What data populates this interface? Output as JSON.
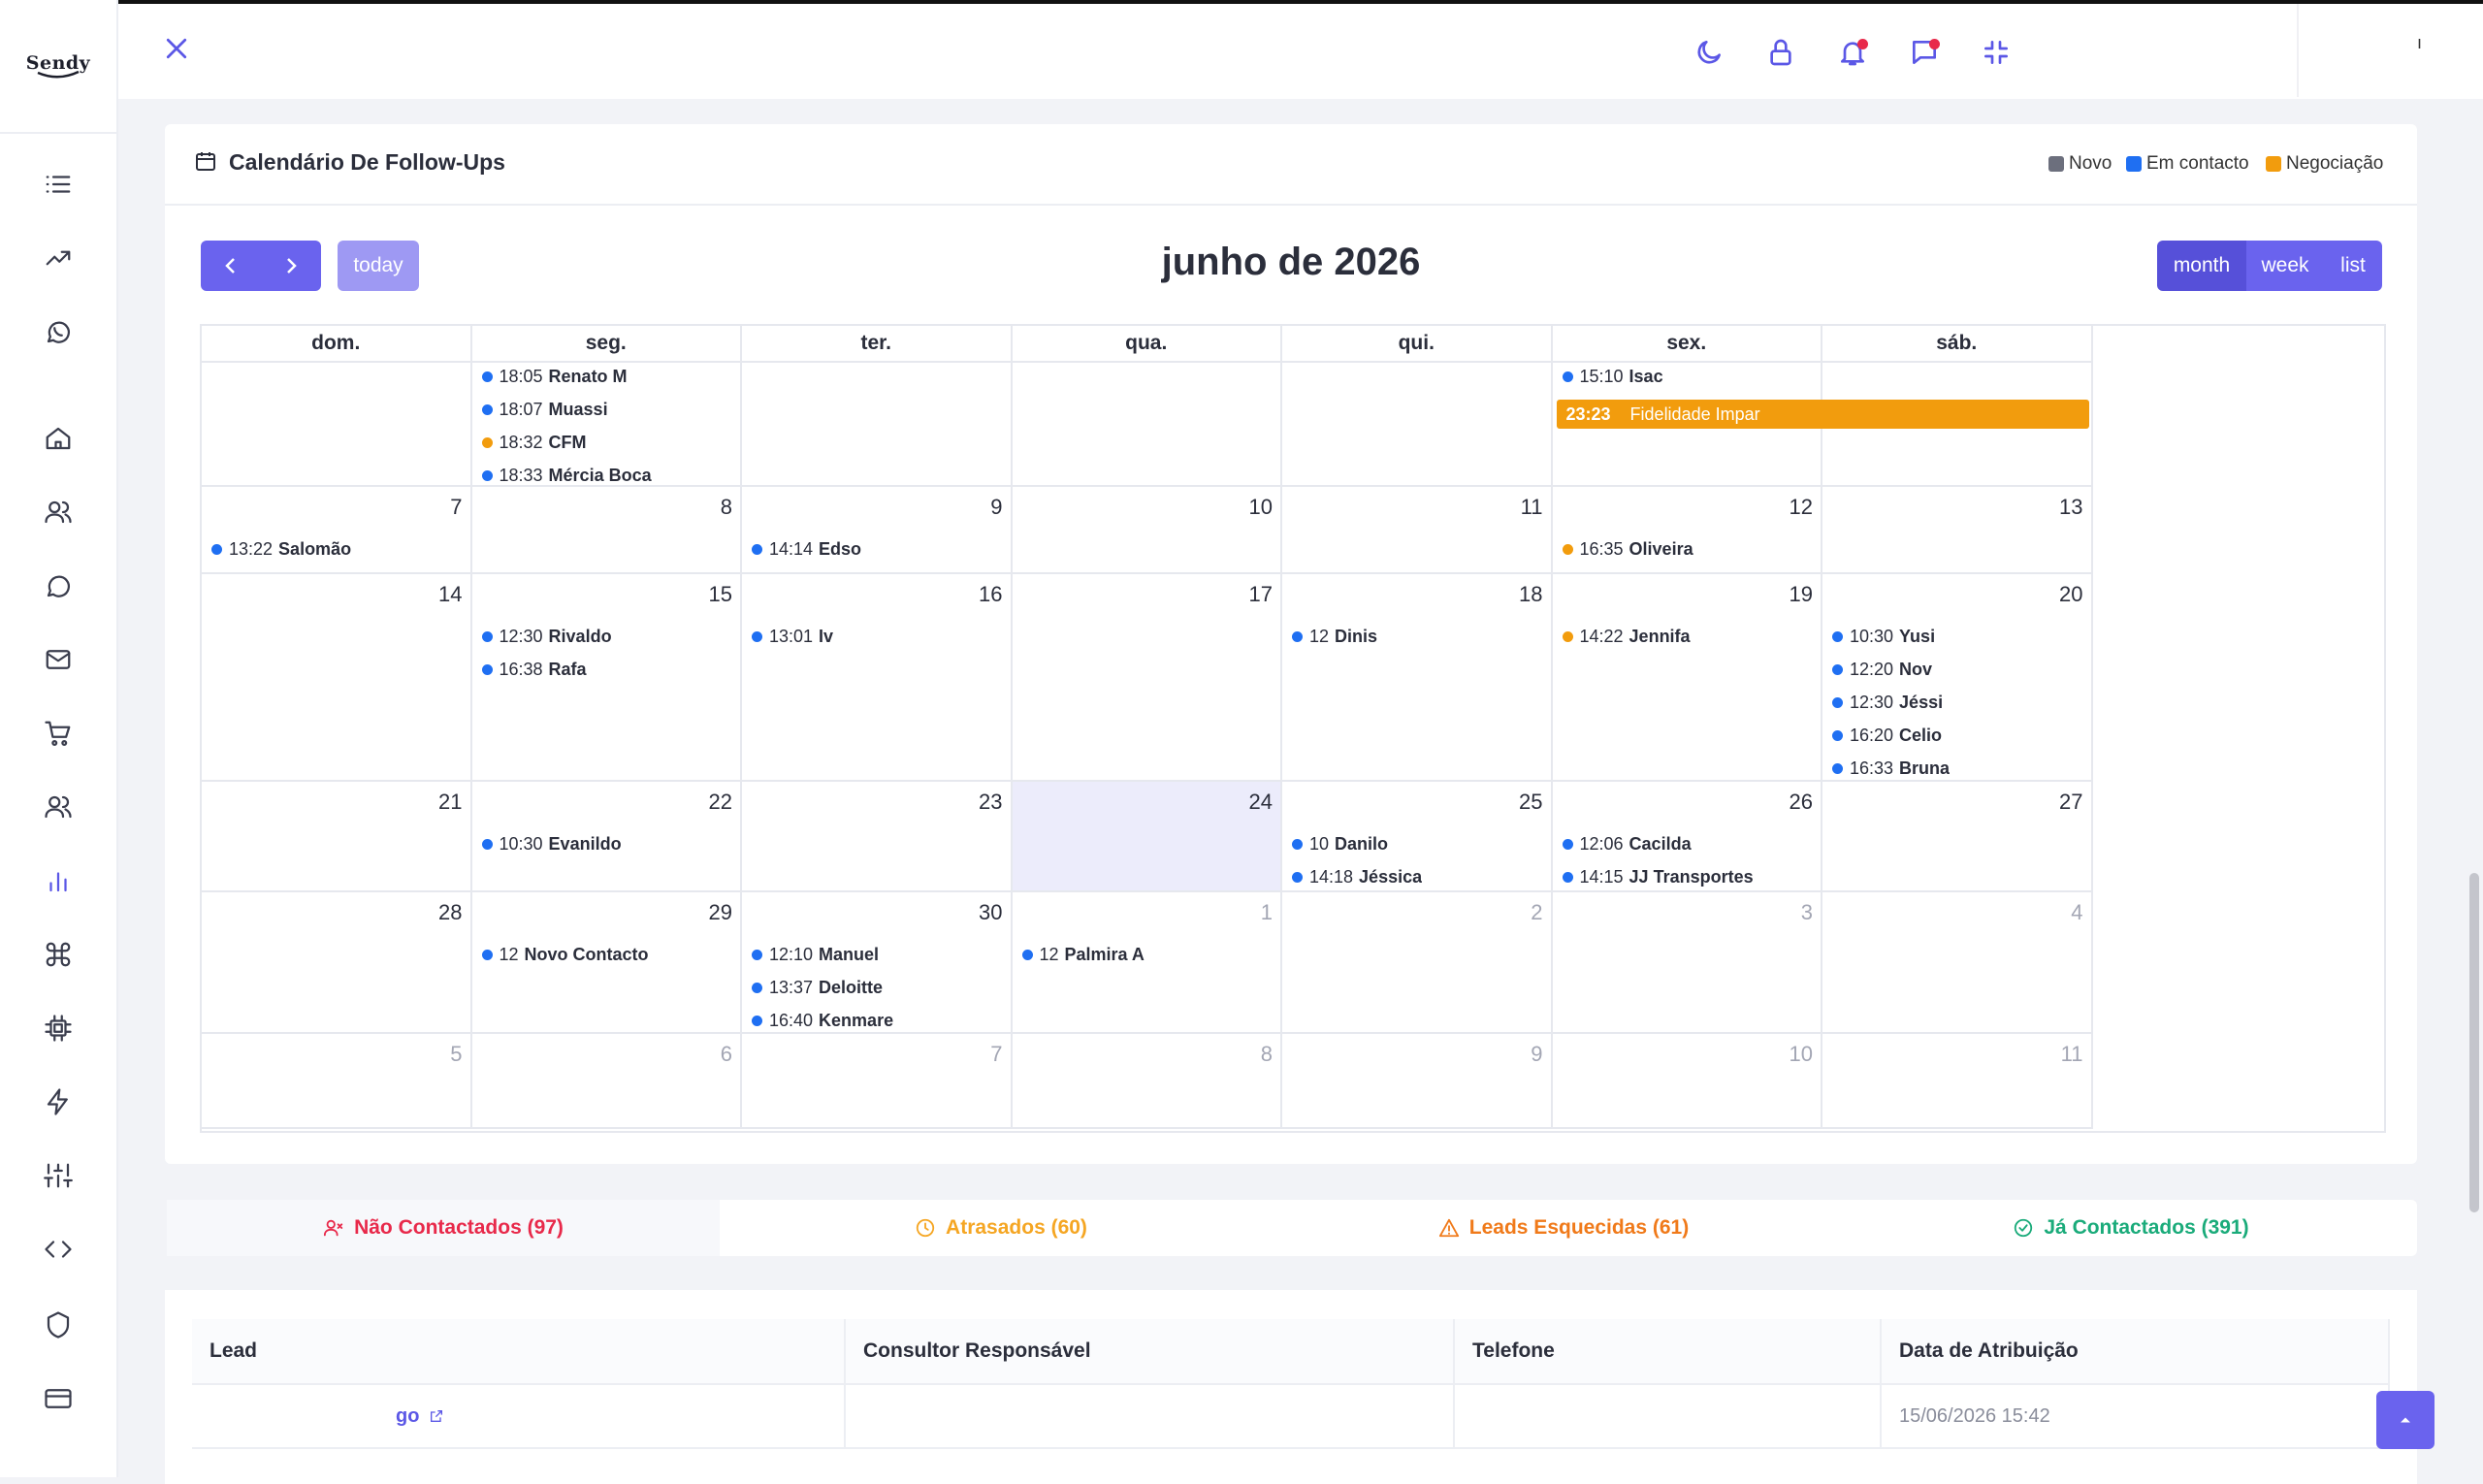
{
  "brand": {
    "name": "Sendy"
  },
  "sidebar": {
    "icons": [
      "list-icon",
      "trending-up-icon",
      "whatsapp-icon",
      "home-icon",
      "users-icon",
      "chat-bubble-icon",
      "mail-icon",
      "cart-icon",
      "team-icon",
      "bar-chart-icon",
      "command-icon",
      "cpu-icon",
      "lightning-icon",
      "sliders-icon",
      "code-icon",
      "shield-icon",
      "credit-card-icon"
    ],
    "active": "bar-chart-icon"
  },
  "topbar": {
    "icons": [
      "moon-icon",
      "lock-icon",
      "bell-icon",
      "message-icon",
      "minimize-icon"
    ],
    "user_stub": "ı"
  },
  "calendar": {
    "title": "Calendário De Follow-Ups",
    "legend": [
      {
        "label": "Novo",
        "color": "#6c6f7d"
      },
      {
        "label": "Em contacto",
        "color": "#1f6ff2"
      },
      {
        "label": "Negociação",
        "color": "#f29c0d"
      }
    ],
    "today_label": "today",
    "month_title": "junho de 2026",
    "views": [
      "month",
      "week",
      "list"
    ],
    "weekdays": [
      "dom.",
      "seg.",
      "ter.",
      "qua.",
      "qui.",
      "sex.",
      "sáb."
    ],
    "weeks": [
      [
        "",
        "",
        "",
        "",
        "",
        "",
        ""
      ],
      [
        "7",
        "8",
        "9",
        "10",
        "11",
        "12",
        "13"
      ],
      [
        "14",
        "15",
        "16",
        "17",
        "18",
        "19",
        "20"
      ],
      [
        "21",
        "22",
        "23",
        "24",
        "25",
        "26",
        "27"
      ],
      [
        "28",
        "29",
        "30",
        "1",
        "2",
        "3",
        "4"
      ],
      [
        "5",
        "6",
        "7",
        "8",
        "9",
        "10",
        "11"
      ]
    ],
    "events": {
      "w0d1": [
        {
          "time": "18:05",
          "name": "Renato M",
          "color": "blue"
        },
        {
          "time": "18:07",
          "name": "Muassi",
          "color": "blue"
        },
        {
          "time": "18:32",
          "name": "CFM",
          "color": "orange"
        },
        {
          "time": "18:33",
          "name": "Mércia Boca",
          "color": "blue"
        }
      ],
      "w0d5": [
        {
          "time": "15:10",
          "name": "Isac",
          "color": "blue"
        }
      ],
      "w1d0": [
        {
          "time": "13:22",
          "name": "Salomão",
          "color": "blue"
        }
      ],
      "w1d2": [
        {
          "time": "14:14",
          "name": "Edso",
          "color": "blue"
        }
      ],
      "w1d5": [
        {
          "time": "16:35",
          "name": "Oliveira",
          "color": "orange"
        }
      ],
      "w2d1": [
        {
          "time": "12:30",
          "name": "Rivaldo",
          "color": "blue"
        },
        {
          "time": "16:38",
          "name": "Rafa",
          "color": "blue"
        }
      ],
      "w2d2": [
        {
          "time": "13:01",
          "name": "Iv",
          "color": "blue"
        }
      ],
      "w2d4": [
        {
          "time": "12",
          "name": "Dinis",
          "color": "blue"
        }
      ],
      "w2d5": [
        {
          "time": "14:22",
          "name": "Jennifa",
          "color": "orange"
        }
      ],
      "w2d6": [
        {
          "time": "10:30",
          "name": "Yusi",
          "color": "blue"
        },
        {
          "time": "12:20",
          "name": "Nov",
          "color": "blue"
        },
        {
          "time": "12:30",
          "name": "Jéssi",
          "color": "blue"
        },
        {
          "time": "16:20",
          "name": "Celio",
          "color": "blue"
        },
        {
          "time": "16:33",
          "name": "Bruna",
          "color": "blue"
        }
      ],
      "w3d1": [
        {
          "time": "10:30",
          "name": "Evanildo",
          "color": "blue"
        }
      ],
      "w3d4": [
        {
          "time": "10",
          "name": "Danilo",
          "color": "blue"
        },
        {
          "time": "14:18",
          "name": "Jéssica",
          "color": "blue"
        }
      ],
      "w3d5": [
        {
          "time": "12:06",
          "name": "Cacilda",
          "color": "blue"
        },
        {
          "time": "14:15",
          "name": "JJ Transportes",
          "color": "blue"
        }
      ],
      "w4d1": [
        {
          "time": "12",
          "name": "Novo Contacto",
          "color": "blue"
        }
      ],
      "w4d2": [
        {
          "time": "12:10",
          "name": "Manuel",
          "color": "blue"
        },
        {
          "time": "13:37",
          "name": "Deloitte",
          "color": "blue"
        },
        {
          "time": "16:40",
          "name": "Kenmare",
          "color": "blue"
        }
      ],
      "w4d3": [
        {
          "time": "12",
          "name": "Palmira A",
          "color": "blue"
        }
      ]
    },
    "bar_event": {
      "time": "23:23",
      "name": "Fidelidade Impar"
    }
  },
  "tabs": [
    {
      "label": "Não Contactados (97)",
      "color": "#e8294a",
      "icon": "user-x-icon"
    },
    {
      "label": "Atrasados (60)",
      "color": "#f5a623",
      "icon": "clock-icon"
    },
    {
      "label": "Leads Esquecidas (61)",
      "color": "#f07a1a",
      "icon": "warning-icon"
    },
    {
      "label": "Já Contactados (391)",
      "color": "#1aab7a",
      "icon": "check-circle-icon"
    }
  ],
  "table": {
    "headers": [
      "Lead",
      "Consultor Responsável",
      "Telefone",
      "Data de Atribuição"
    ],
    "rows": [
      {
        "lead": "go",
        "consultor": "",
        "telefone": "",
        "data": "15/06/2026 15:42"
      }
    ]
  }
}
